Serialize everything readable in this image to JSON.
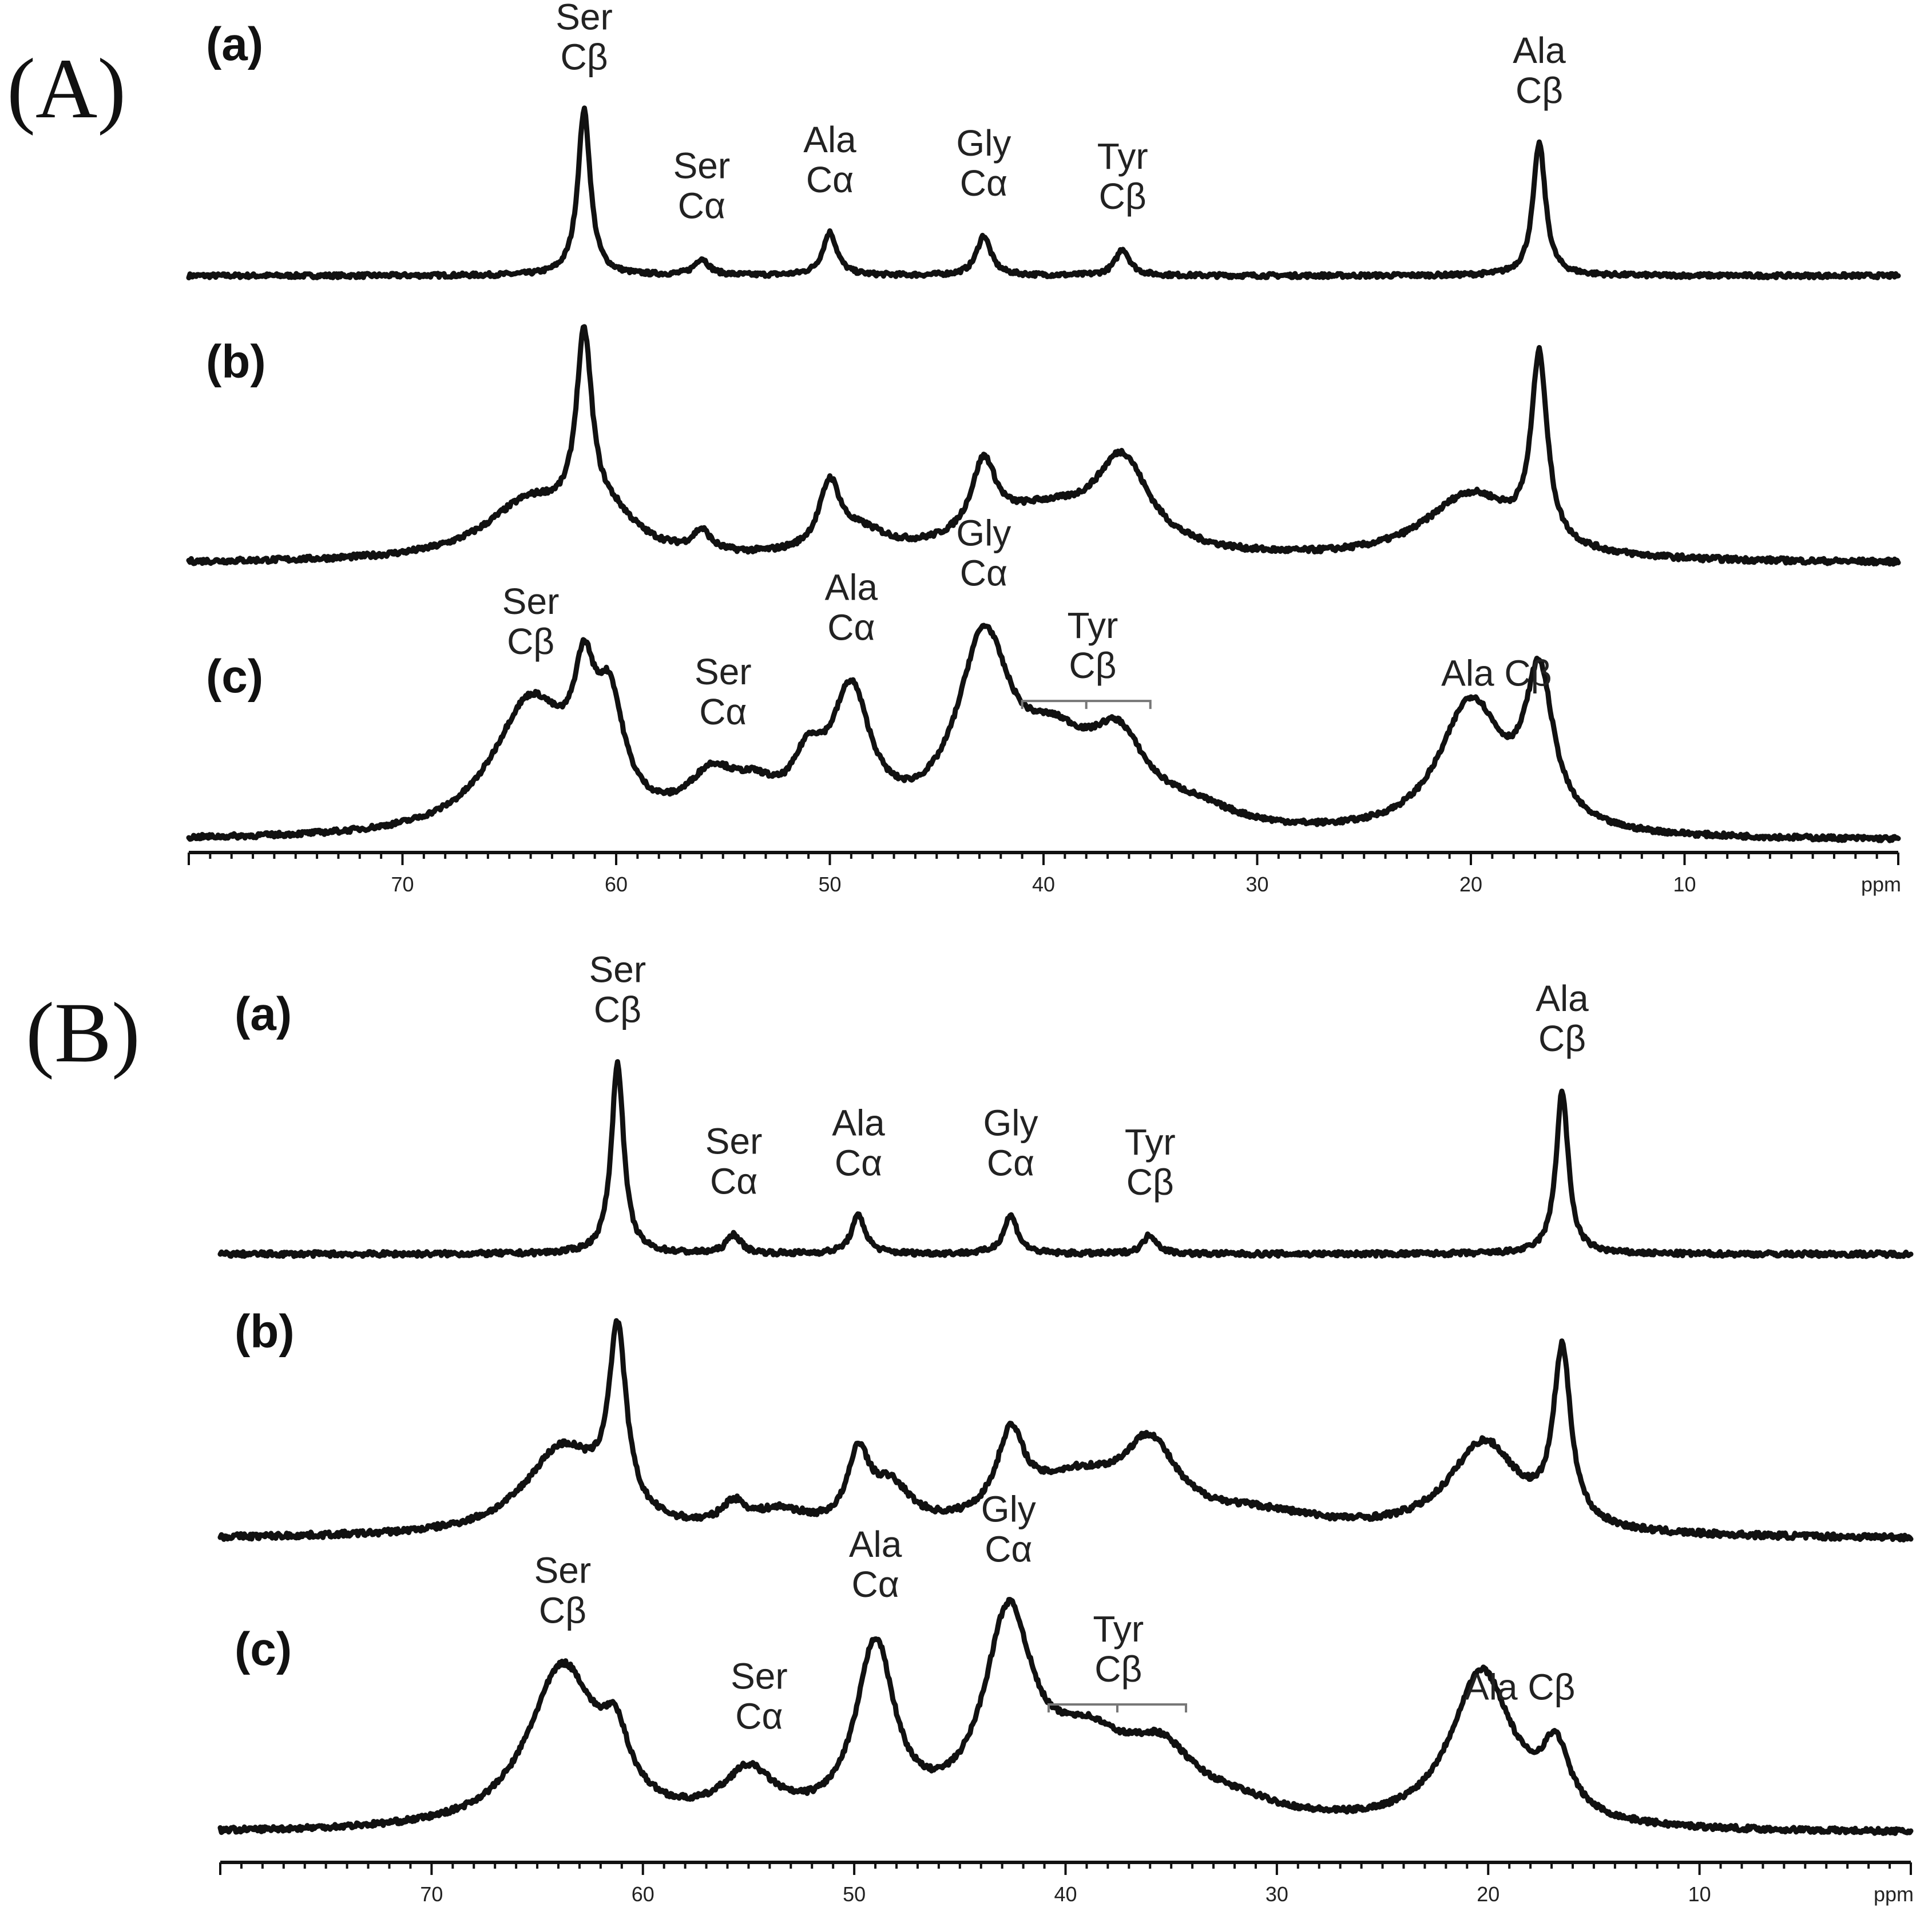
{
  "figure": {
    "x_unit": "ppm",
    "panels": [
      {
        "label": "(A)",
        "axis": {
          "ticks": [
            70,
            60,
            50,
            40,
            30,
            20,
            10
          ],
          "unit_label": "ppm",
          "xlim": [
            80,
            0
          ]
        },
        "traces": [
          {
            "label": "(a)",
            "peaks": [
              {
                "ppm": 61.5,
                "height": 1.0,
                "width": 0.35
              },
              {
                "ppm": 56.0,
                "height": 0.1,
                "width": 0.4
              },
              {
                "ppm": 50.0,
                "height": 0.26,
                "width": 0.4
              },
              {
                "ppm": 42.8,
                "height": 0.24,
                "width": 0.4
              },
              {
                "ppm": 36.3,
                "height": 0.16,
                "width": 0.4
              },
              {
                "ppm": 16.8,
                "height": 0.8,
                "width": 0.35
              }
            ],
            "annotations": [
              {
                "lines": [
                  "Ser",
                  "Cβ"
                ],
                "ppm": 61.5
              },
              {
                "lines": [
                  "Ser",
                  "Cα"
                ],
                "ppm": 56.0
              },
              {
                "lines": [
                  "Ala",
                  "Cα"
                ],
                "ppm": 50.0
              },
              {
                "lines": [
                  "Gly",
                  "Cα"
                ],
                "ppm": 42.8
              },
              {
                "lines": [
                  "Tyr",
                  "Cβ"
                ],
                "ppm": 36.3
              },
              {
                "lines": [
                  "Ala",
                  "Cβ"
                ],
                "ppm": 16.8
              }
            ]
          },
          {
            "label": "(b)",
            "peaks": [
              {
                "ppm": 61.5,
                "height": 0.9,
                "width": 0.45
              },
              {
                "ppm": 64.0,
                "height": 0.28,
                "width": 2.6
              },
              {
                "ppm": 60.2,
                "height": 0.15,
                "width": 1.5
              },
              {
                "ppm": 56.0,
                "height": 0.1,
                "width": 0.5
              },
              {
                "ppm": 50.0,
                "height": 0.32,
                "width": 0.6
              },
              {
                "ppm": 48.5,
                "height": 0.1,
                "width": 1.5
              },
              {
                "ppm": 42.8,
                "height": 0.35,
                "width": 0.7
              },
              {
                "ppm": 40.0,
                "height": 0.22,
                "width": 3.5
              },
              {
                "ppm": 36.3,
                "height": 0.42,
                "width": 1.5
              },
              {
                "ppm": 20.0,
                "height": 0.32,
                "width": 2.6
              },
              {
                "ppm": 16.8,
                "height": 0.9,
                "width": 0.45
              }
            ],
            "annotations": []
          },
          {
            "label": "(c)",
            "peaks": [
              {
                "ppm": 64.0,
                "height": 0.7,
                "width": 2.2
              },
              {
                "ppm": 61.5,
                "height": 0.55,
                "width": 0.6
              },
              {
                "ppm": 60.3,
                "height": 0.55,
                "width": 0.8
              },
              {
                "ppm": 55.5,
                "height": 0.25,
                "width": 1.4
              },
              {
                "ppm": 53.5,
                "height": 0.15,
                "width": 1.3
              },
              {
                "ppm": 51.0,
                "height": 0.28,
                "width": 0.9
              },
              {
                "ppm": 49.0,
                "height": 0.68,
                "width": 1.1
              },
              {
                "ppm": 42.8,
                "height": 0.95,
                "width": 1.5
              },
              {
                "ppm": 39.5,
                "height": 0.38,
                "width": 2.2
              },
              {
                "ppm": 36.5,
                "height": 0.4,
                "width": 1.6
              },
              {
                "ppm": 33.0,
                "height": 0.1,
                "width": 2.5
              },
              {
                "ppm": 20.0,
                "height": 0.7,
                "width": 1.8
              },
              {
                "ppm": 16.8,
                "height": 0.78,
                "width": 0.8
              }
            ],
            "annotations": [
              {
                "lines": [
                  "Ser",
                  "Cβ"
                ],
                "ppm": 64.0
              },
              {
                "lines": [
                  "Ser",
                  "Cα"
                ],
                "ppm": 55.0
              },
              {
                "lines": [
                  "Ala",
                  "Cα"
                ],
                "ppm": 49.0
              },
              {
                "lines": [
                  "Gly",
                  "Cα"
                ],
                "ppm": 42.8
              },
              {
                "lines": [
                  "Tyr",
                  "Cβ"
                ],
                "ppm": 37.7,
                "bracket": [
                  41.0,
                  35.0
                ]
              },
              {
                "lines": [
                  "Ala Cβ"
                ],
                "ppm": 18.8
              }
            ]
          }
        ]
      },
      {
        "label": "(B)",
        "axis": {
          "ticks": [
            70,
            60,
            50,
            40,
            30,
            20,
            10
          ],
          "unit_label": "ppm",
          "xlim": [
            80,
            0
          ]
        },
        "traces": [
          {
            "label": "(a)",
            "peaks": [
              {
                "ppm": 61.2,
                "height": 1.0,
                "width": 0.35
              },
              {
                "ppm": 55.7,
                "height": 0.1,
                "width": 0.4
              },
              {
                "ppm": 49.8,
                "height": 0.2,
                "width": 0.4
              },
              {
                "ppm": 42.6,
                "height": 0.2,
                "width": 0.4
              },
              {
                "ppm": 36.0,
                "height": 0.1,
                "width": 0.4
              },
              {
                "ppm": 16.5,
                "height": 0.85,
                "width": 0.35
              }
            ],
            "annotations": [
              {
                "lines": [
                  "Ser",
                  "Cβ"
                ],
                "ppm": 61.2
              },
              {
                "lines": [
                  "Ser",
                  "Cα"
                ],
                "ppm": 55.7
              },
              {
                "lines": [
                  "Ala",
                  "Cα"
                ],
                "ppm": 49.8
              },
              {
                "lines": [
                  "Gly",
                  "Cα"
                ],
                "ppm": 42.6
              },
              {
                "lines": [
                  "Tyr",
                  "Cβ"
                ],
                "ppm": 36.0
              },
              {
                "lines": [
                  "Ala",
                  "Cβ"
                ],
                "ppm": 16.5
              }
            ]
          },
          {
            "label": "(b)",
            "peaks": [
              {
                "ppm": 61.2,
                "height": 0.78,
                "width": 0.5
              },
              {
                "ppm": 63.8,
                "height": 0.38,
                "width": 2.2
              },
              {
                "ppm": 55.7,
                "height": 0.1,
                "width": 0.7
              },
              {
                "ppm": 53.5,
                "height": 0.08,
                "width": 1.5
              },
              {
                "ppm": 49.8,
                "height": 0.3,
                "width": 0.6
              },
              {
                "ppm": 48.3,
                "height": 0.18,
                "width": 1.2
              },
              {
                "ppm": 42.6,
                "height": 0.35,
                "width": 0.8
              },
              {
                "ppm": 39.5,
                "height": 0.22,
                "width": 3.0
              },
              {
                "ppm": 36.0,
                "height": 0.32,
                "width": 1.5
              },
              {
                "ppm": 31.0,
                "height": 0.08,
                "width": 4.0
              },
              {
                "ppm": 20.2,
                "height": 0.4,
                "width": 2.0
              },
              {
                "ppm": 16.5,
                "height": 0.75,
                "width": 0.5
              }
            ],
            "annotations": []
          },
          {
            "label": "(c)",
            "peaks": [
              {
                "ppm": 63.8,
                "height": 0.78,
                "width": 2.0
              },
              {
                "ppm": 61.3,
                "height": 0.28,
                "width": 0.8
              },
              {
                "ppm": 55.0,
                "height": 0.24,
                "width": 1.5
              },
              {
                "ppm": 49.0,
                "height": 0.85,
                "width": 1.1
              },
              {
                "ppm": 42.7,
                "height": 0.95,
                "width": 1.4
              },
              {
                "ppm": 39.0,
                "height": 0.35,
                "width": 2.5
              },
              {
                "ppm": 35.5,
                "height": 0.28,
                "width": 2.0
              },
              {
                "ppm": 32.0,
                "height": 0.08,
                "width": 3.0
              },
              {
                "ppm": 20.3,
                "height": 0.76,
                "width": 1.8
              },
              {
                "ppm": 16.8,
                "height": 0.32,
                "width": 0.8
              }
            ],
            "annotations": [
              {
                "lines": [
                  "Ser",
                  "Cβ"
                ],
                "ppm": 63.8
              },
              {
                "lines": [
                  "Ser",
                  "Cα"
                ],
                "ppm": 54.5
              },
              {
                "lines": [
                  "Ala",
                  "Cα"
                ],
                "ppm": 49.0
              },
              {
                "lines": [
                  "Gly",
                  "Cα"
                ],
                "ppm": 42.7
              },
              {
                "lines": [
                  "Tyr",
                  "Cβ"
                ],
                "ppm": 37.5,
                "bracket": [
                  40.8,
                  34.3
                ]
              },
              {
                "lines": [
                  "Ala Cβ"
                ],
                "ppm": 18.5
              }
            ]
          }
        ]
      }
    ]
  },
  "chart_data": [
    {
      "type": "line",
      "title": "(A)",
      "xlabel": "ppm",
      "xlim": [
        80,
        0
      ],
      "x_reversed": true,
      "x_ticks": [
        70,
        60,
        50,
        40,
        30,
        20,
        10
      ],
      "grid": false,
      "series": [
        {
          "name": "(a)",
          "peak_ppm": [
            61.5,
            56.0,
            50.0,
            42.8,
            36.3,
            16.8
          ],
          "peak_rel_intensity": [
            1.0,
            0.1,
            0.26,
            0.24,
            0.16,
            0.8
          ]
        },
        {
          "name": "(b)",
          "peak_ppm": [
            61.5,
            56.0,
            50.0,
            42.8,
            36.3,
            20.0,
            16.8
          ],
          "peak_rel_intensity": [
            1.0,
            0.17,
            0.41,
            0.49,
            0.52,
            0.4,
            1.0
          ]
        },
        {
          "name": "(c)",
          "peak_ppm": [
            64.0,
            61.5,
            60.3,
            55.5,
            49.0,
            42.8,
            36.5,
            20.0,
            16.8
          ],
          "peak_rel_intensity": [
            0.65,
            0.64,
            0.66,
            0.23,
            0.7,
            1.0,
            0.55,
            0.63,
            0.82
          ]
        }
      ]
    },
    {
      "type": "line",
      "title": "(B)",
      "xlabel": "ppm",
      "xlim": [
        80,
        0
      ],
      "x_reversed": true,
      "x_ticks": [
        70,
        60,
        50,
        40,
        30,
        20,
        10
      ],
      "grid": false,
      "series": [
        {
          "name": "(a)",
          "peak_ppm": [
            61.2,
            55.7,
            49.8,
            42.6,
            36.0,
            16.5
          ],
          "peak_rel_intensity": [
            1.0,
            0.1,
            0.2,
            0.2,
            0.1,
            0.85
          ]
        },
        {
          "name": "(b)",
          "peak_ppm": [
            63.8,
            61.2,
            55.7,
            49.8,
            42.6,
            36.0,
            20.2,
            16.5
          ],
          "peak_rel_intensity": [
            0.45,
            1.0,
            0.14,
            0.46,
            0.48,
            0.46,
            0.43,
            0.83
          ]
        },
        {
          "name": "(c)",
          "peak_ppm": [
            63.8,
            61.3,
            55.0,
            49.0,
            42.7,
            20.3,
            16.8
          ],
          "peak_rel_intensity": [
            0.76,
            0.5,
            0.2,
            0.83,
            1.0,
            0.71,
            0.33
          ]
        }
      ]
    }
  ]
}
